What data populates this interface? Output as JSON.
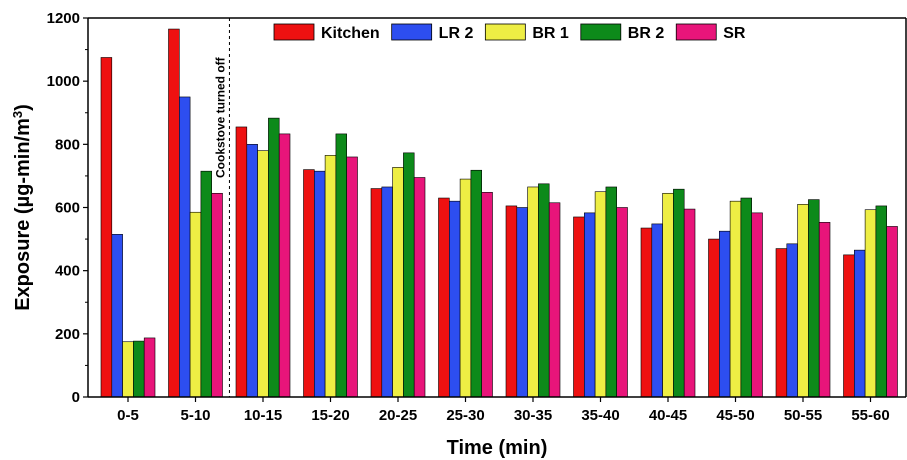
{
  "chart_data": {
    "type": "bar",
    "xlabel": "Time (min)",
    "ylabel_main": "Exposure (µg-min/m",
    "ylabel_sup": "3",
    "ylabel_close": ")",
    "ylim": [
      0,
      1200
    ],
    "yticks": [
      0,
      200,
      400,
      600,
      800,
      1000,
      1200
    ],
    "categories": [
      "0-5",
      "5-10",
      "10-15",
      "15-20",
      "20-25",
      "25-30",
      "30-35",
      "35-40",
      "40-45",
      "45-50",
      "50-55",
      "55-60"
    ],
    "series": [
      {
        "name": "Kitchen",
        "color": "#ee1111",
        "values": [
          1075,
          1165,
          855,
          720,
          660,
          630,
          605,
          570,
          535,
          500,
          470,
          450
        ]
      },
      {
        "name": "LR 2",
        "color": "#2d4ef0",
        "values": [
          515,
          950,
          800,
          715,
          665,
          620,
          600,
          583,
          548,
          525,
          485,
          465
        ]
      },
      {
        "name": "BR 1",
        "color": "#eeee44",
        "values": [
          175,
          585,
          780,
          765,
          727,
          690,
          665,
          650,
          645,
          620,
          610,
          593
        ]
      },
      {
        "name": "BR 2",
        "color": "#0d8a1a",
        "values": [
          177,
          715,
          883,
          833,
          773,
          718,
          675,
          665,
          658,
          630,
          625,
          605
        ]
      },
      {
        "name": "SR",
        "color": "#e8157a",
        "values": [
          187,
          645,
          833,
          760,
          695,
          648,
          615,
          600,
          595,
          583,
          553,
          540
        ]
      }
    ],
    "annotation": "Cookstove turned off",
    "grid": false,
    "legend_position": "top-right"
  }
}
